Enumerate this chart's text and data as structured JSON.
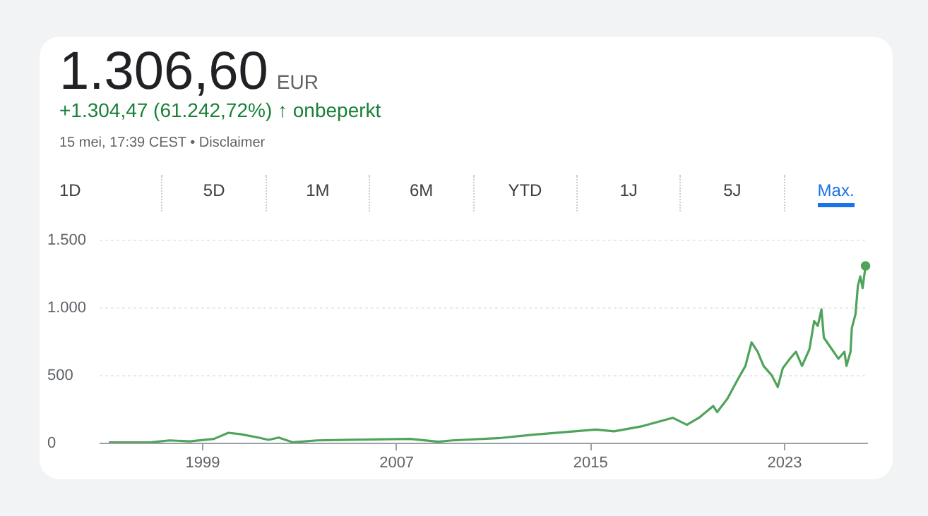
{
  "chart_data": {
    "type": "line",
    "title": "1.306,60",
    "subtitle": "+1.304,47 (61.242,72%) ↑ onbeperkt",
    "annotations": [
      "EUR",
      "15 mei, 17:39 CEST • Disclaimer",
      "1D",
      "5D",
      "1M",
      "6M",
      "YTD",
      "1J",
      "5J",
      "Max."
    ],
    "x": [
      "1995-03",
      "1996-12",
      "1997-09",
      "1998-07",
      "1999-07",
      "2000-02",
      "2000-08",
      "2001-05",
      "2001-10",
      "2002-03",
      "2002-10",
      "2003-10",
      "2006-02",
      "2007-08",
      "2008-10",
      "2009-05",
      "2011-05",
      "2012-09",
      "2013-12",
      "2015-04",
      "2016-01",
      "2017-03",
      "2018-06",
      "2019-01",
      "2019-07",
      "2020-02",
      "2020-04",
      "2020-09",
      "2021-02",
      "2021-06",
      "2021-09",
      "2021-12",
      "2022-03",
      "2022-07",
      "2022-10",
      "2022-12-15",
      "2023-04",
      "2023-07",
      "2023-10",
      "2024-01-20",
      "2024-04",
      "2024-05-25",
      "2024-07-20",
      "2024-08-25",
      "2024-12",
      "2025-04",
      "2025-07",
      "2025-08",
      "2025-10",
      "2025-10-20",
      "2025-12-15",
      "2026-01-20",
      "2026-02-25",
      "2026-04",
      "2026-05-15"
    ],
    "series": [
      {
        "color": "#4fa35a",
        "values": [
          2,
          3,
          17,
          10,
          28,
          73,
          63,
          38,
          21,
          38,
          3,
          17,
          24,
          28,
          7,
          17,
          35,
          59,
          77,
          97,
          84,
          122,
          184,
          132,
          184,
          271,
          226,
          324,
          463,
          567,
          741,
          672,
          567,
          498,
          411,
          550,
          620,
          672,
          567,
          689,
          898,
          863,
          985,
          776,
          707,
          620,
          672,
          567,
          672,
          846,
          950,
          1159,
          1229,
          1142,
          1306.6
        ]
      }
    ],
    "xlim": [
      "1994-10",
      "2026-06-10"
    ],
    "xticks": [
      "1999",
      "2007",
      "2015",
      "2023"
    ],
    "ylim": [
      0,
      1500
    ],
    "yticks": [
      0,
      {
        "value": 500,
        "label": "500"
      },
      {
        "value": 1000,
        "label": "1.000"
      },
      {
        "value": 1500,
        "label": "1.500"
      }
    ],
    "grid": "y"
  }
}
